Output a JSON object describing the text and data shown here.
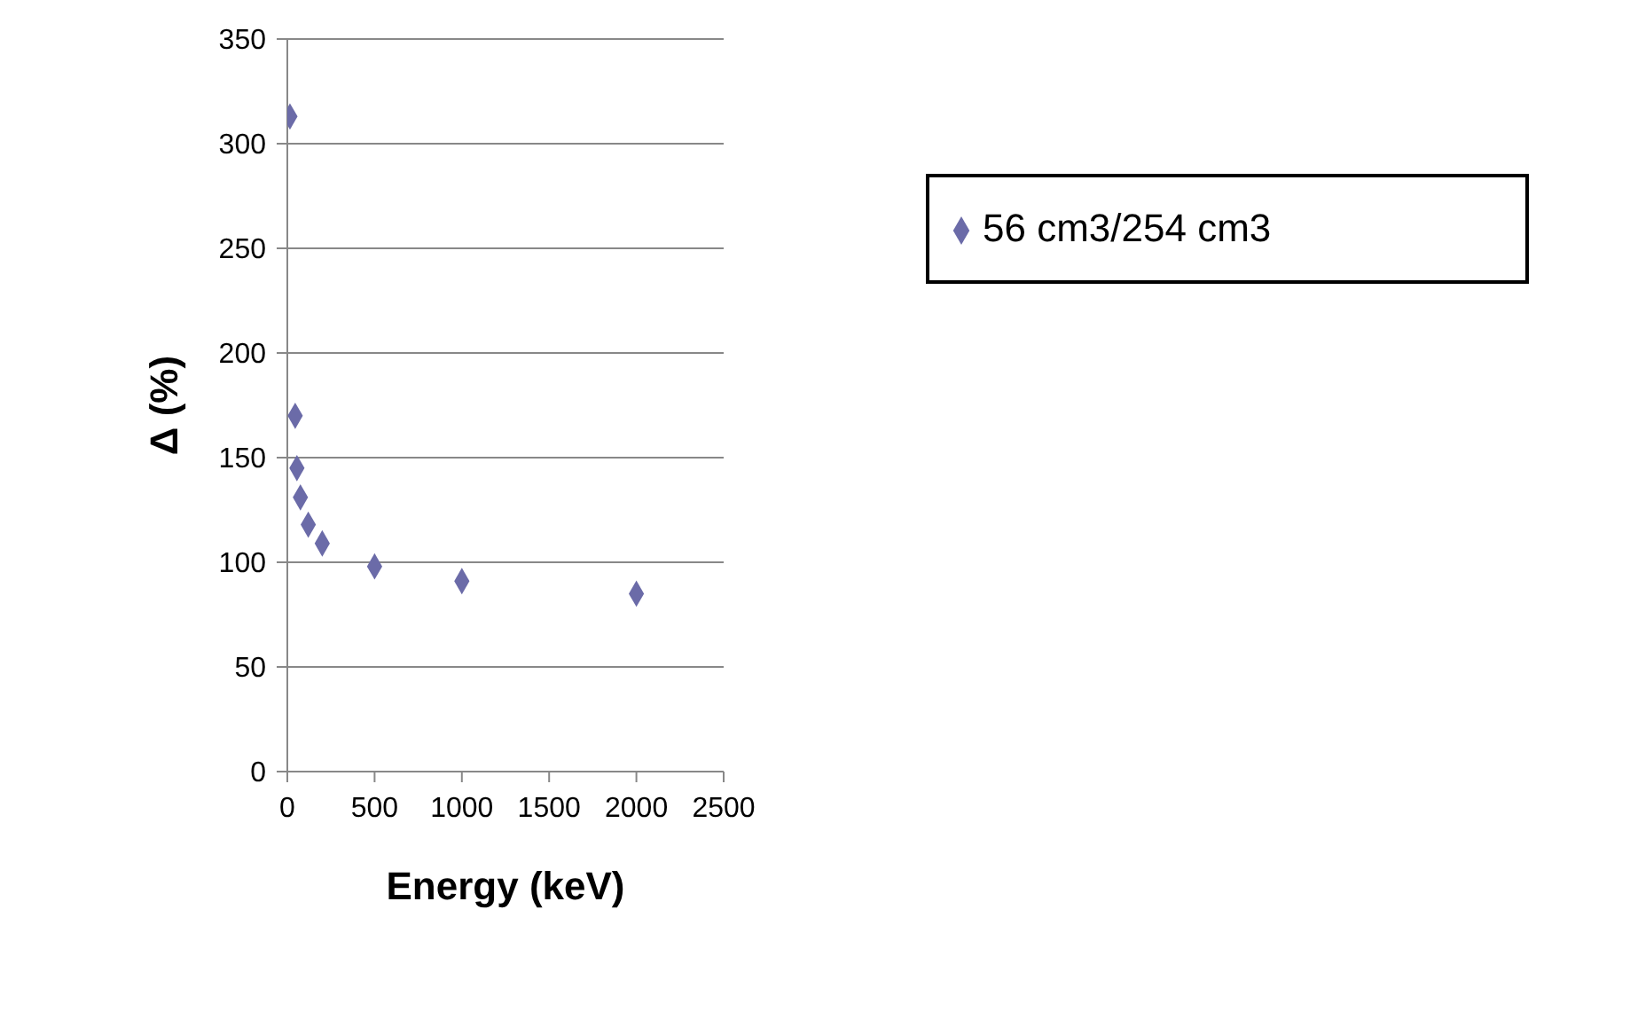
{
  "chart_data": {
    "type": "scatter",
    "xlabel": "Energy (keV)",
    "ylabel": "Δ (%)",
    "series": [
      {
        "name": "56 cm3/254 cm3",
        "color": "#6b6ba8",
        "x": [
          15,
          45,
          55,
          75,
          120,
          200,
          500,
          1000,
          2000
        ],
        "values": [
          313,
          170,
          145,
          131,
          118,
          109,
          98,
          91,
          85
        ]
      }
    ],
    "xlim": [
      0,
      2500
    ],
    "xticks": [
      0,
      500,
      1000,
      1500,
      2000,
      2500
    ],
    "ylim": [
      0,
      350
    ],
    "yticks": [
      0,
      50,
      100,
      150,
      200,
      250,
      300,
      350
    ],
    "grid": "y",
    "legend": "top right",
    "marker": "diamond"
  }
}
